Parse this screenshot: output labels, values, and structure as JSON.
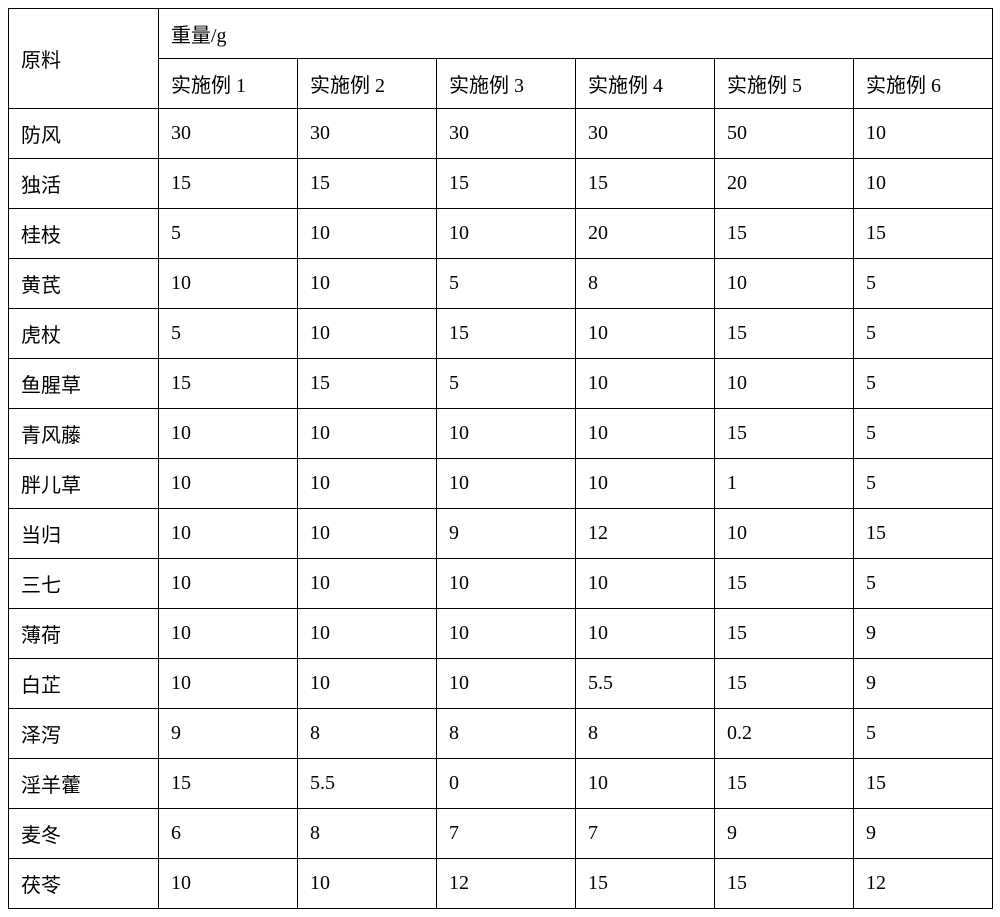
{
  "table": {
    "header_label": "原料",
    "header_group": "重量/g",
    "columns": [
      "实施例 1",
      "实施例 2",
      "实施例 3",
      "实施例 4",
      "实施例 5",
      "实施例 6"
    ],
    "rows": [
      {
        "label": "防风",
        "values": [
          "30",
          "30",
          "30",
          "30",
          "50",
          "10"
        ]
      },
      {
        "label": "独活",
        "values": [
          "15",
          "15",
          "15",
          "15",
          "20",
          "10"
        ]
      },
      {
        "label": "桂枝",
        "values": [
          "5",
          "10",
          "10",
          "20",
          "15",
          "15"
        ]
      },
      {
        "label": "黄芪",
        "values": [
          "10",
          "10",
          "5",
          "8",
          "10",
          "5"
        ]
      },
      {
        "label": "虎杖",
        "values": [
          "5",
          "10",
          "15",
          "10",
          "15",
          "5"
        ]
      },
      {
        "label": "鱼腥草",
        "values": [
          "15",
          "15",
          "5",
          "10",
          "10",
          "5"
        ]
      },
      {
        "label": "青风藤",
        "values": [
          "10",
          "10",
          "10",
          "10",
          "15",
          "5"
        ]
      },
      {
        "label": "胖儿草",
        "values": [
          "10",
          "10",
          "10",
          "10",
          "1",
          "5"
        ]
      },
      {
        "label": "当归",
        "values": [
          "10",
          "10",
          "9",
          "12",
          "10",
          "15"
        ]
      },
      {
        "label": "三七",
        "values": [
          "10",
          "10",
          "10",
          "10",
          "15",
          "5"
        ]
      },
      {
        "label": "薄荷",
        "values": [
          "10",
          "10",
          "10",
          "10",
          "15",
          "9"
        ]
      },
      {
        "label": "白芷",
        "values": [
          "10",
          "10",
          "10",
          "5.5",
          "15",
          "9"
        ]
      },
      {
        "label": "泽泻",
        "values": [
          "9",
          "8",
          "8",
          "8",
          "0.2",
          "5"
        ]
      },
      {
        "label": "淫羊藿",
        "values": [
          "15",
          "5.5",
          "0",
          "10",
          "15",
          "15"
        ]
      },
      {
        "label": "麦冬",
        "values": [
          "6",
          "8",
          "7",
          "7",
          "9",
          "9"
        ]
      },
      {
        "label": "茯苓",
        "values": [
          "10",
          "10",
          "12",
          "15",
          "15",
          "12"
        ]
      }
    ]
  }
}
